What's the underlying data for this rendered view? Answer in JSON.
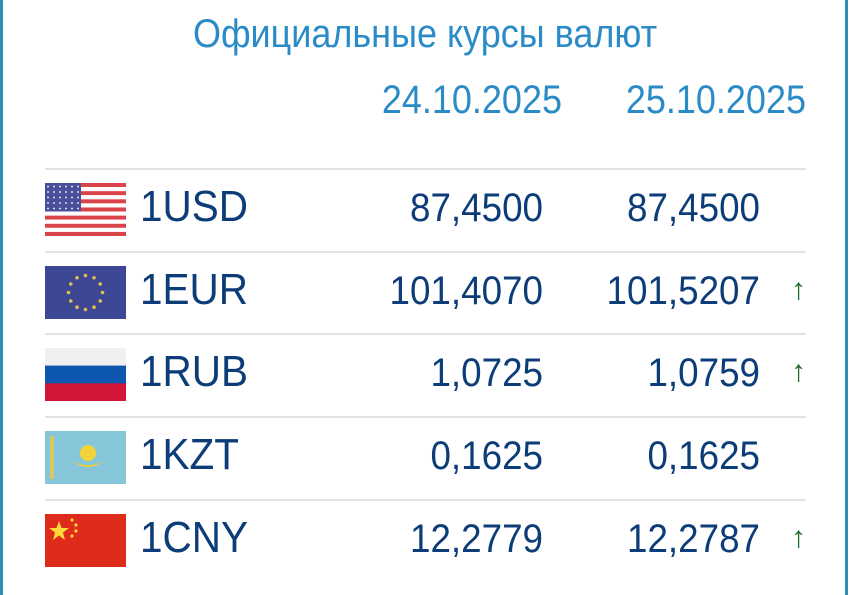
{
  "title": "Официальные курсы валют",
  "dates": [
    "24.10.2025",
    "25.10.2025"
  ],
  "colors": {
    "title": "#2a8bc6",
    "text": "#0c3d78",
    "up_arrow": "#1b6b2a"
  },
  "rows": [
    {
      "code": "1USD",
      "flag": "us-flag",
      "v1": "87,4500",
      "v2": "87,4500",
      "arrow": ""
    },
    {
      "code": "1EUR",
      "flag": "eu-flag",
      "v1": "101,4070",
      "v2": "101,5207",
      "arrow": "↑"
    },
    {
      "code": "1RUB",
      "flag": "ru-flag",
      "v1": "1,0725",
      "v2": "1,0759",
      "arrow": "↑"
    },
    {
      "code": "1KZT",
      "flag": "kz-flag",
      "v1": "0,1625",
      "v2": "0,1625",
      "arrow": ""
    },
    {
      "code": "1CNY",
      "flag": "cn-flag",
      "v1": "12,2779",
      "v2": "12,2787",
      "arrow": "↑"
    }
  ]
}
